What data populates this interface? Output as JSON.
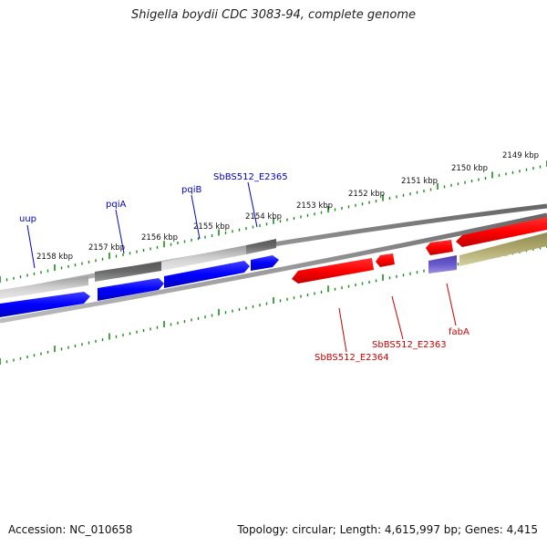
{
  "header": {
    "title": "Shigella boydii CDC 3083-94, complete genome"
  },
  "footer": {
    "accession": "Accession: NC_010658",
    "summary": "Topology: circular; Length: 4,615,997 bp; Genes: 4,415"
  },
  "ruler": {
    "kbp_labels": [
      "2158 kbp",
      "2157 kbp",
      "2156 kbp",
      "2155 kbp",
      "2154 kbp",
      "2153 kbp",
      "2152 kbp",
      "2151 kbp",
      "2150 kbp",
      "2149 kbp"
    ]
  },
  "genes": {
    "forward": [
      {
        "label": "uup",
        "color": "#0000cc"
      },
      {
        "label": "pqiA",
        "color": "#0000cc"
      },
      {
        "label": "pqiB",
        "color": "#0000cc"
      },
      {
        "label": "SbBS512_E2365",
        "color": "#0000cc"
      }
    ],
    "reverse": [
      {
        "label": "SbBS512_E2364",
        "color": "#cc0000"
      },
      {
        "label": "SbBS512_E2363",
        "color": "#cc0000"
      },
      {
        "label": "fabA",
        "color": "#cc0000"
      }
    ]
  },
  "colors": {
    "forward_cds": "#0000ff",
    "reverse_cds": "#ff0000",
    "backbone": "#888888",
    "tick": "#1a8a1a",
    "light_gray_feature": "#c8c8c8",
    "dark_gray_feature": "#6a6a6a",
    "olive_feature": "#b0aa70",
    "purple_feature": "#6a5acd"
  }
}
